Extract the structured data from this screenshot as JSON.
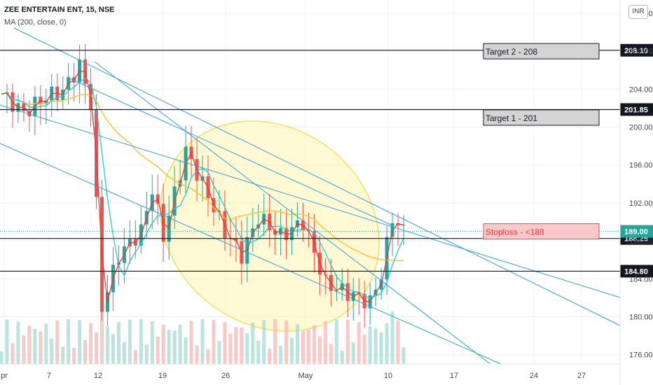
{
  "header": {
    "symbol": "ZEE ENTERTAIN ENT, 15, NSE",
    "indicator": "MA (200, close, 0)",
    "currency": "INR"
  },
  "colors": {
    "candle_up": "#26a69a",
    "candle_down": "#ef5350",
    "ma_fast": "#e53935",
    "ma_mid": "#26c6da",
    "ma_200": "#f7c73a",
    "trendline": "#2fa0d6",
    "level_line": "#131722",
    "ellipse_fill": "#fff59d",
    "target_box": "#d4d4d4",
    "stoploss_box": "#f9c8c8",
    "volume_up": "#9fd8d2",
    "volume_down": "#f4b3b1"
  },
  "chart_data": {
    "type": "candlestick",
    "title": "ZEE ENTERTAIN ENT, 15, NSE",
    "ylim": [
      172.8,
      213.4
    ],
    "y_ticks": [
      "212.00",
      "208.00",
      "204.00",
      "200.00",
      "196.00",
      "192.00",
      "188.00",
      "184.00",
      "180.00",
      "176.00"
    ],
    "x_ticks": [
      "pr",
      "7",
      "12",
      "19",
      "26",
      "May",
      "10",
      "17",
      "24",
      "27"
    ],
    "grid": true,
    "horizontal_levels": [
      {
        "label": "208.10",
        "value": 208.1
      },
      {
        "label": "201.85",
        "value": 201.85
      },
      {
        "label": "188.25",
        "value": 188.25
      },
      {
        "label": "184.80",
        "value": 184.8
      }
    ],
    "last_price": {
      "label": "189.00",
      "value": 189.0
    },
    "annotations": [
      {
        "text": "Target 2 - 208",
        "value": 208
      },
      {
        "text": "Target 1 - 201",
        "value": 201
      },
      {
        "text": "Stoploss - <188",
        "value": 188
      }
    ],
    "price_path_anchors": [
      {
        "session": 0,
        "price": 203.5
      },
      {
        "session": 4,
        "price": 201.5
      },
      {
        "session": 8,
        "price": 203.2
      },
      {
        "session": 11,
        "price": 203.8
      },
      {
        "session": 14,
        "price": 206.5
      },
      {
        "session": 16,
        "price": 202.5
      },
      {
        "session": 18,
        "price": 181.0
      },
      {
        "session": 21,
        "price": 186.5
      },
      {
        "session": 25,
        "price": 189.0
      },
      {
        "session": 27,
        "price": 193.5
      },
      {
        "session": 29,
        "price": 188.5
      },
      {
        "session": 33,
        "price": 197.5
      },
      {
        "session": 36,
        "price": 194.0
      },
      {
        "session": 40,
        "price": 189.0
      },
      {
        "session": 43,
        "price": 186.5
      },
      {
        "session": 46,
        "price": 190.5
      },
      {
        "session": 50,
        "price": 188.5
      },
      {
        "session": 54,
        "price": 190.0
      },
      {
        "session": 58,
        "price": 183.5
      },
      {
        "session": 62,
        "price": 182.5
      },
      {
        "session": 66,
        "price": 181.5
      },
      {
        "session": 68,
        "price": 184.5
      },
      {
        "session": 70,
        "price": 190.5
      },
      {
        "session": 72,
        "price": 189.0
      }
    ]
  }
}
